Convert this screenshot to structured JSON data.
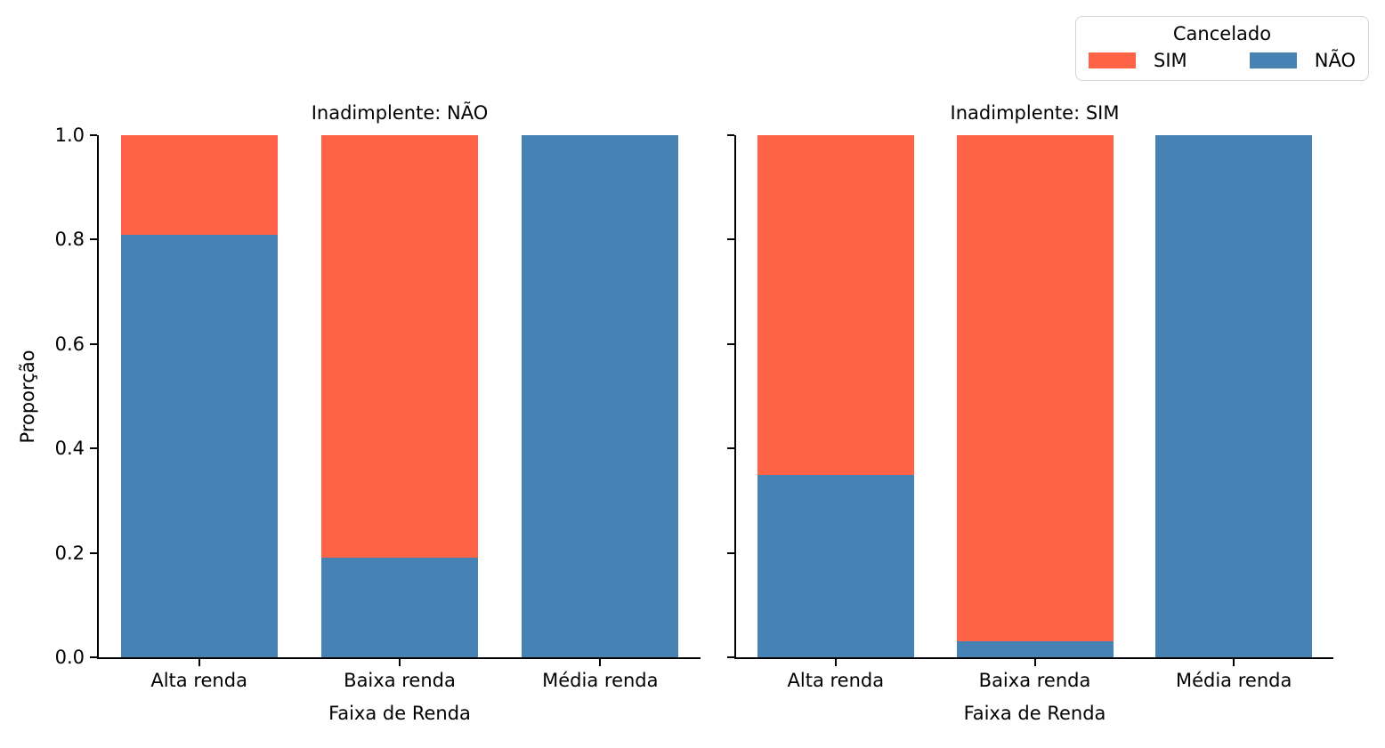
{
  "colors": {
    "sim": "#FF6347",
    "nao": "#4682B4",
    "axis": "#000000",
    "text": "#000000",
    "legend_border": "#D4D4D4",
    "background": "#FFFFFF"
  },
  "legend": {
    "title": "Cancelado",
    "entries": [
      {
        "label": "SIM",
        "color": "#FF6347"
      },
      {
        "label": "NÃO",
        "color": "#4682B4"
      }
    ]
  },
  "chart_data": {
    "type": "bar",
    "variant": "stacked-proportion",
    "grid": false,
    "legend_position": "top-right",
    "legend_title": "Cancelado",
    "categories": [
      "Alta renda",
      "Baixa renda",
      "Média renda"
    ],
    "xlabel": "Faixa de Renda",
    "ylabel": "Proporção",
    "ylim": [
      0,
      1
    ],
    "yticks": [
      0,
      0.2,
      0.4,
      0.6,
      0.8,
      1
    ],
    "ytick_labels": [
      "0.0",
      "0.2",
      "0.4",
      "0.6",
      "0.8",
      "1.0"
    ],
    "facets": [
      {
        "title": "Inadimplente: NÃO",
        "series": [
          {
            "name": "NÃO",
            "color": "#4682B4",
            "values": [
              0.81,
              0.19,
              1.0
            ]
          },
          {
            "name": "SIM",
            "color": "#FF6347",
            "values": [
              0.19,
              0.81,
              0.0
            ]
          }
        ]
      },
      {
        "title": "Inadimplente: SIM",
        "series": [
          {
            "name": "NÃO",
            "color": "#4682B4",
            "values": [
              0.35,
              0.03,
              1.0
            ]
          },
          {
            "name": "SIM",
            "color": "#FF6347",
            "values": [
              0.65,
              0.97,
              0.0
            ]
          }
        ]
      }
    ]
  }
}
